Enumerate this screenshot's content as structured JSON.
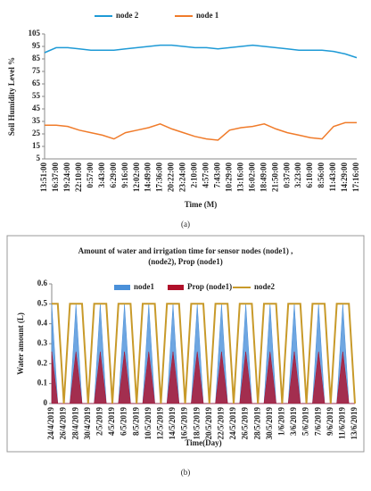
{
  "chart_data": [
    {
      "type": "line",
      "ylabel": "Soil Humidity Level %",
      "xlabel": "Time (M)",
      "caption": "(a)",
      "categories": [
        "13:51:00",
        "16:37:00",
        "19:24:00",
        "22:10:00",
        "0:57:00",
        "3:43:00",
        "6:29:00",
        "9:16:00",
        "12:02:00",
        "14:49:00",
        "17:36:00",
        "20:22:00",
        "23:24:00",
        "2:10:00",
        "4:57:00",
        "7:43:00",
        "10:29:00",
        "13:16:00",
        "16:02:00",
        "18:49:00",
        "21:50:00",
        "0:37:00",
        "3:23:00",
        "6:10:00",
        "8:56:00",
        "11:43:00",
        "14:29:00",
        "17:16:00"
      ],
      "series": [
        {
          "name": "node 2",
          "color": "#1e9ad6",
          "kind": "line",
          "values": [
            90,
            94,
            94,
            93,
            92,
            92,
            92,
            93,
            94,
            95,
            96,
            96,
            95,
            94,
            94,
            93,
            94,
            95,
            96,
            95,
            94,
            93,
            92,
            92,
            92,
            91,
            89,
            86
          ]
        },
        {
          "name": "node 1",
          "color": "#f07b2a",
          "kind": "line",
          "values": [
            32,
            32,
            31,
            28,
            26,
            24,
            21,
            26,
            28,
            30,
            33,
            29,
            26,
            23,
            21,
            20,
            28,
            30,
            31,
            33,
            29,
            26,
            24,
            22,
            21,
            31,
            34,
            34
          ]
        }
      ],
      "ylim": [
        5,
        105
      ],
      "yticks": [
        5,
        15,
        25,
        35,
        45,
        55,
        65,
        75,
        85,
        95,
        105
      ],
      "legend": "top"
    },
    {
      "type": "mixed",
      "title": "Amount of water and irrigation time for sensor nodes (node1) , (node2), Prop (node1)",
      "ylabel": "Water amount (L)",
      "xlabel": "Time(Day)",
      "caption": "(b)",
      "categories": [
        "24/4/2019",
        null,
        "26/4/2019",
        null,
        "28/4/2019",
        null,
        "30/4/2019",
        null,
        "2/5/2019",
        null,
        "4/5/2019",
        null,
        "6/5/2019",
        null,
        "8/5/2019",
        null,
        "10/5/2019",
        null,
        "12/5/2019",
        null,
        "14/5/2019",
        null,
        "16/5/2019",
        null,
        "18/5/2019",
        null,
        "20/5/2019",
        null,
        "22/5/2019",
        null,
        "24/5/2019",
        null,
        "26/5/2019",
        null,
        "28/5/2019",
        null,
        "30/5/2019",
        null,
        "1/6/2019",
        null,
        "3/6/2019",
        null,
        "5/6/2019",
        null,
        "7/6/2019",
        null,
        "9/6/2019",
        null,
        "11/6/2019",
        null,
        "13/6/2019"
      ],
      "series": [
        {
          "name": "node1",
          "color": "#4a90d9",
          "kind": "area",
          "values": [
            0.5,
            0,
            0,
            0,
            0.5,
            0,
            0,
            0,
            0.5,
            0,
            0,
            0,
            0.5,
            0,
            0,
            0,
            0.5,
            0,
            0,
            0,
            0.5,
            0,
            0,
            0,
            0.5,
            0,
            0,
            0,
            0.5,
            0,
            0,
            0,
            0.5,
            0,
            0,
            0,
            0.5,
            0,
            0,
            0,
            0.5,
            0,
            0,
            0,
            0.5,
            0,
            0,
            0,
            0.5,
            0,
            0
          ]
        },
        {
          "name": "Prop (node1)",
          "color": "#b0102a",
          "kind": "area",
          "values": [
            0.26,
            0,
            0,
            0,
            0.26,
            0,
            0,
            0,
            0.26,
            0,
            0,
            0,
            0.26,
            0,
            0,
            0,
            0.26,
            0,
            0,
            0,
            0.26,
            0,
            0,
            0,
            0.26,
            0,
            0,
            0,
            0.26,
            0,
            0,
            0,
            0.26,
            0,
            0,
            0,
            0.26,
            0,
            0,
            0,
            0.26,
            0,
            0,
            0,
            0.26,
            0,
            0,
            0,
            0.26,
            0,
            0
          ]
        },
        {
          "name": "node2",
          "color": "#c89a2a",
          "kind": "line",
          "values": [
            0.5,
            0.5,
            0,
            0.5,
            0.5,
            0.5,
            0,
            0.5,
            0.5,
            0.5,
            0,
            0.5,
            0.5,
            0.5,
            0,
            0.5,
            0.5,
            0.5,
            0,
            0.5,
            0.5,
            0.5,
            0,
            0.5,
            0.5,
            0.5,
            0,
            0.5,
            0.5,
            0.5,
            0,
            0.5,
            0.5,
            0.5,
            0,
            0.5,
            0.5,
            0.5,
            0,
            0.5,
            0.5,
            0.5,
            0,
            0.5,
            0.5,
            0.5,
            0,
            0.5,
            0.5,
            0.5,
            0
          ]
        }
      ],
      "ylim": [
        0,
        0.6
      ],
      "yticks": [
        0,
        0.1,
        0.2,
        0.3,
        0.4,
        0.5,
        0.6
      ],
      "legend": "top"
    }
  ]
}
